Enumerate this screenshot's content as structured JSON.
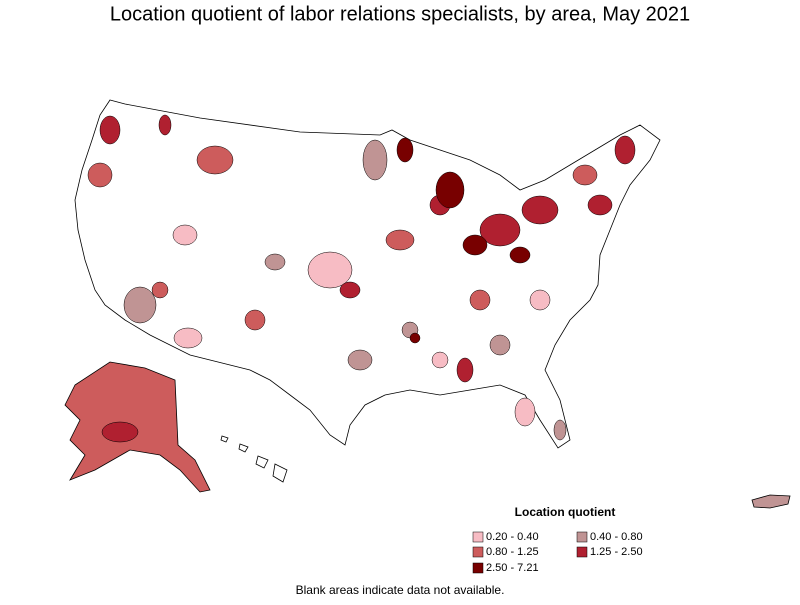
{
  "title": "Location quotient of labor relations specialists, by area, May 2021",
  "legend": {
    "title": "Location quotient",
    "items": [
      {
        "label": "0.20 - 0.40",
        "color": "#f7bcc4"
      },
      {
        "label": "0.40 - 0.80",
        "color": "#c09494"
      },
      {
        "label": "0.80 - 1.25",
        "color": "#cd5c5c"
      },
      {
        "label": "1.25 - 2.50",
        "color": "#b02030"
      },
      {
        "label": "2.50 - 7.21",
        "color": "#780000"
      }
    ]
  },
  "note": "Blank areas indicate data not available."
}
